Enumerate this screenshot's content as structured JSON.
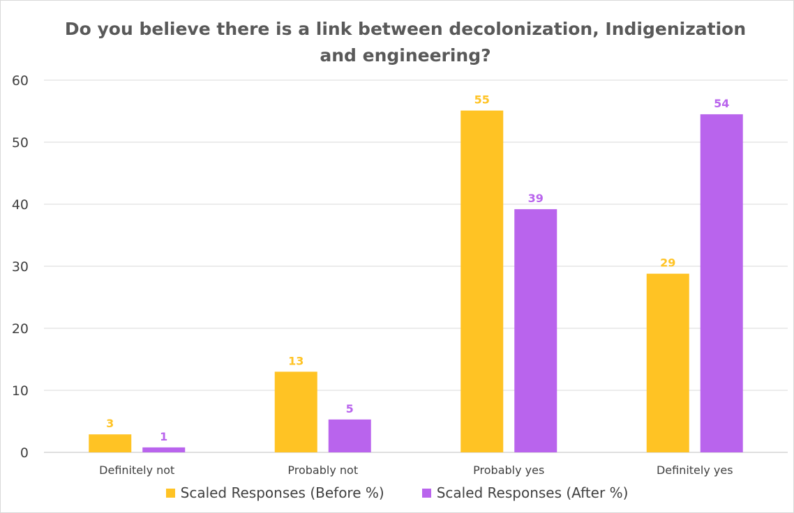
{
  "chart_data": {
    "type": "bar",
    "title": "Do you believe there is a link between decolonization, Indigenization and engineering?",
    "categories": [
      "Definitely not",
      "Probably not",
      "Probably yes",
      "Definitely yes"
    ],
    "series": [
      {
        "name": "Scaled Responses (Before %)",
        "color": "#ffc324",
        "values": [
          2.9,
          13.0,
          55.1,
          28.8
        ],
        "labels": [
          "3",
          "13",
          "55",
          "29"
        ]
      },
      {
        "name": "Scaled Responses (After %)",
        "color": "#b964ed",
        "values": [
          0.8,
          5.3,
          39.2,
          54.5
        ],
        "labels": [
          "1",
          "5",
          "39",
          "54"
        ]
      }
    ],
    "y_ticks": [
      "0",
      "10",
      "20",
      "30",
      "40",
      "50",
      "60"
    ],
    "ylim": [
      0,
      60
    ],
    "grid": true,
    "legend_position": "bottom"
  }
}
